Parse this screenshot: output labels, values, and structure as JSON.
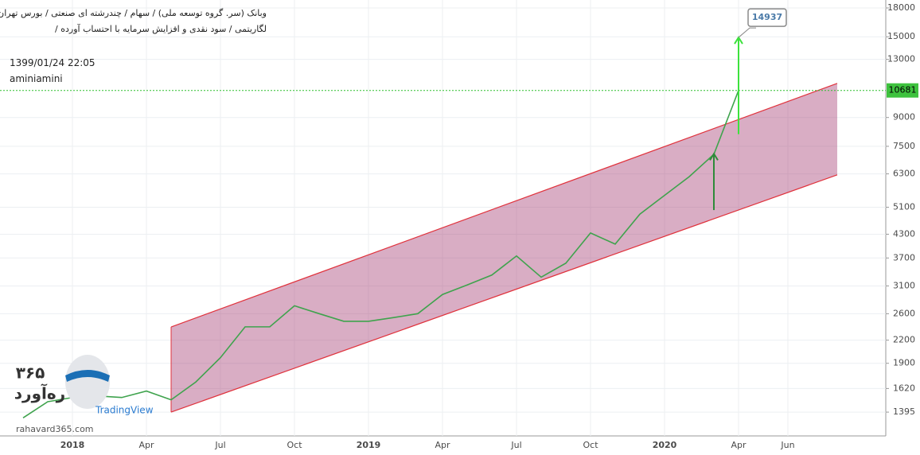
{
  "chart_data": {
    "type": "line",
    "title": "وبانک (سر. گروه توسعه ملی) / سهام / چندرشته ای صنعتی / بورس تهران",
    "subtitle": "لگاریتمی / سود نقدی و افزایش سرمایه با احتساب آورده /",
    "timestamp": "1399/01/24 22:05",
    "author": "aminiamini",
    "watermark": "TradingView",
    "logo_number": "۳۶۵",
    "logo_name": "ره‌آورد",
    "logo_url": "rahavard365.com",
    "x": [
      "2017-11",
      "2017-12",
      "2018-01",
      "2018-02",
      "2018-03",
      "2018-04",
      "2018-05",
      "2018-06",
      "2018-07",
      "2018-08",
      "2018-09",
      "2018-10",
      "2018-11",
      "2018-12",
      "2019-01",
      "2019-02",
      "2019-03",
      "2019-04",
      "2019-05",
      "2019-06",
      "2019-07",
      "2019-08",
      "2019-09",
      "2019-10",
      "2019-11",
      "2019-12",
      "2020-01",
      "2020-02",
      "2020-03",
      "2020-04"
    ],
    "values": [
      1345,
      1490,
      1530,
      1545,
      1530,
      1594,
      1508,
      1688,
      1969,
      2393,
      2393,
      2734,
      2601,
      2478,
      2478,
      2536,
      2601,
      2936,
      3118,
      3321,
      3748,
      3277,
      3580,
      4335,
      4040,
      4883,
      5499,
      6189,
      7130,
      10681
    ],
    "color": "#3fa34d",
    "log_scale": true,
    "ylim": [
      1200,
      18930
    ],
    "yticks": [
      1395,
      1620,
      1900,
      2200,
      2600,
      3100,
      3700,
      4300,
      5100,
      6300,
      7500,
      9000,
      13000,
      15000,
      18000
    ],
    "xticks": [
      {
        "value": "2018-01",
        "label": "2018"
      },
      {
        "value": "2018-04",
        "label": "Apr"
      },
      {
        "value": "2018-07",
        "label": "Jul"
      },
      {
        "value": "2018-10",
        "label": "Oct"
      },
      {
        "value": "2019-01",
        "label": "2019"
      },
      {
        "value": "2019-04",
        "label": "Apr"
      },
      {
        "value": "2019-07",
        "label": "Jul"
      },
      {
        "value": "2019-10",
        "label": "Oct"
      },
      {
        "value": "2020-01",
        "label": "2020"
      },
      {
        "value": "2020-04",
        "label": "Apr"
      },
      {
        "value": "2020-06",
        "label": "Jun"
      }
    ],
    "grid": true,
    "channel": {
      "x": [
        "2018-05",
        "2020-08"
      ],
      "upper": [
        2391,
        11168
      ],
      "lower": [
        1395,
        6260
      ],
      "color": "#e0323c"
    },
    "arrows": [
      {
        "x": "2020-03",
        "from": 5010,
        "to": 7153
      },
      {
        "x": "2020-04",
        "from": 8099,
        "to": 14937
      }
    ],
    "target_label": 14937,
    "last_price": 10681
  }
}
